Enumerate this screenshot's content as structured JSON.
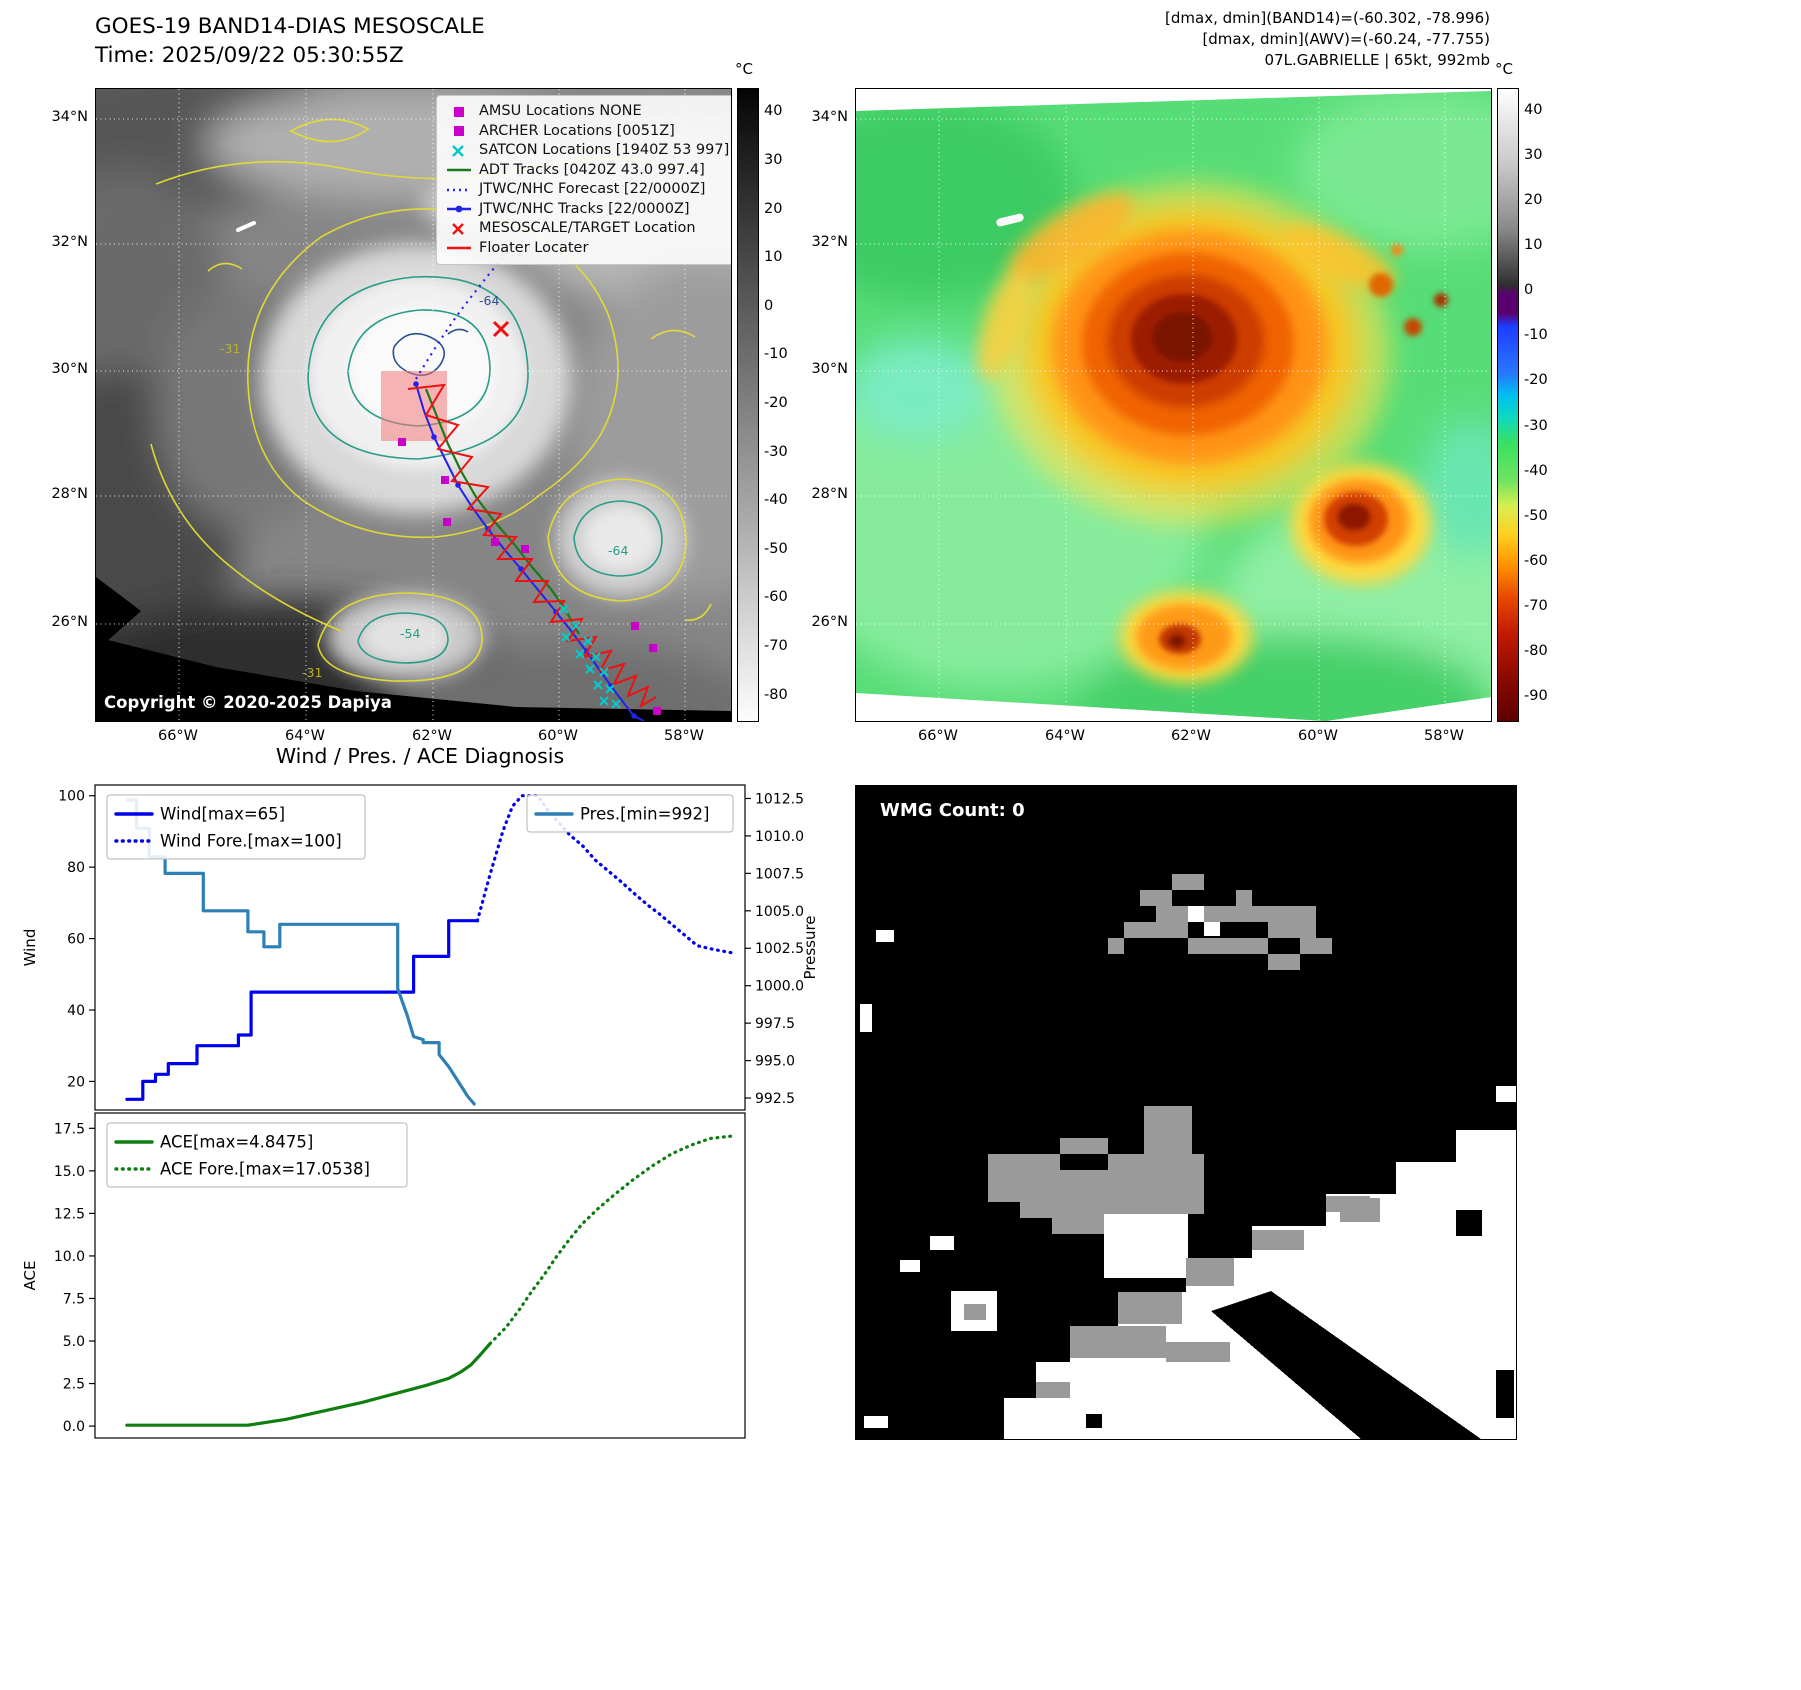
{
  "band14_panel": {
    "title_line1": "GOES-19 BAND14-DIAS MESOSCALE",
    "title_line2": "Time: 2025/09/22 05:30:55Z",
    "copyright": "Copyright © 2020-2025 Dapiya",
    "colorbar_unit": "°C",
    "colorbar_ticks": [
      "40",
      "30",
      "20",
      "10",
      "0",
      "-10",
      "-20",
      "-30",
      "-40",
      "-50",
      "-60",
      "-70",
      "-80"
    ],
    "colorbar_range": [
      45,
      -85
    ],
    "x_ticks": [
      "66°W",
      "64°W",
      "62°W",
      "60°W",
      "58°W"
    ],
    "y_ticks": [
      "34°N",
      "32°N",
      "30°N",
      "28°N",
      "26°N"
    ],
    "contour_labels": [
      "-64",
      "-64",
      "-54",
      "-31",
      "-31"
    ],
    "legend": [
      {
        "label": "AMSU Locations NONE",
        "marker": "square",
        "color": "#cc00cc"
      },
      {
        "label": "ARCHER Locations [0051Z]",
        "marker": "square",
        "color": "#cc00cc"
      },
      {
        "label": "SATCON Locations [1940Z 53 997]",
        "marker": "x",
        "color": "#00c8c8"
      },
      {
        "label": "ADT Tracks [0420Z 43.0 997.4]",
        "marker": "line",
        "color": "#1a7a1a"
      },
      {
        "label": "JTWC/NHC Forecast [22/0000Z]",
        "marker": "dotted",
        "color": "#2222ee"
      },
      {
        "label": "JTWC/NHC Tracks [22/0000Z]",
        "marker": "line-dot",
        "color": "#2222ee"
      },
      {
        "label": "MESOSCALE/TARGET Location",
        "marker": "x",
        "color": "#ee1111"
      },
      {
        "label": "Floater Locater",
        "marker": "line",
        "color": "#ee1111"
      }
    ]
  },
  "awv_panel": {
    "header_line1": "[dmax, dmin](BAND14)=(-60.302, -78.996)",
    "header_line2": "[dmax, dmin](AWV)=(-60.24, -77.755)",
    "header_line3": "07L.GABRIELLE | 65kt, 992mb",
    "colorbar_unit": "°C",
    "colorbar_ticks": [
      "40",
      "30",
      "20",
      "10",
      "0",
      "-10",
      "-20",
      "-30",
      "-40",
      "-50",
      "-60",
      "-70",
      "-80",
      "-90"
    ],
    "colorbar_range": [
      45,
      -95
    ],
    "x_ticks": [
      "66°W",
      "64°W",
      "62°W",
      "60°W",
      "58°W"
    ],
    "y_ticks": [
      "34°N",
      "32°N",
      "30°N",
      "28°N",
      "26°N"
    ]
  },
  "diagnosis": {
    "title": "Wind / Pres. / ACE Diagnosis"
  },
  "wmg_panel": {
    "label": "WMG Count: 0"
  },
  "chart_data": [
    {
      "type": "line",
      "title": "Wind / Pres. / ACE Diagnosis",
      "ylabel": "Wind",
      "y2label": "Pressure",
      "ylim": [
        12,
        103
      ],
      "y2lim": [
        991.7,
        1013.4
      ],
      "yticks": [
        "20",
        "40",
        "60",
        "80",
        "100"
      ],
      "y2ticks": [
        "992.5",
        "995.0",
        "997.5",
        "1000.0",
        "1002.5",
        "1005.0",
        "1007.5",
        "1010.0",
        "1012.5"
      ],
      "grid": false,
      "series": [
        {
          "name": "Wind[max=65]",
          "axis": "y",
          "style": "solid",
          "color": "#0000ee",
          "x": [
            0.05,
            0.075,
            0.075,
            0.095,
            0.095,
            0.115,
            0.115,
            0.16,
            0.16,
            0.225,
            0.225,
            0.245,
            0.245,
            0.5,
            0.5,
            0.555,
            0.555,
            0.6
          ],
          "values": [
            15,
            15,
            20,
            20,
            22,
            22,
            25,
            25,
            30,
            30,
            33,
            33,
            45,
            45,
            55,
            55,
            65,
            65
          ]
        },
        {
          "name": "Wind Fore.[max=100]",
          "axis": "y",
          "style": "dotted",
          "color": "#0000ee",
          "x": [
            0.6,
            0.62,
            0.64,
            0.655,
            0.67,
            0.695,
            0.71,
            0.73,
            0.745,
            0.765,
            0.785,
            0.805,
            0.825,
            0.85,
            0.87,
            0.885,
            0.905,
            0.925,
            0.945,
            0.97,
            1.0
          ],
          "values": [
            65,
            78,
            90,
            97,
            100,
            100,
            96,
            92,
            89,
            86,
            82,
            79,
            76,
            72,
            69,
            67,
            64,
            61,
            58,
            57,
            56
          ]
        },
        {
          "name": "Pres.[min=992]",
          "axis": "y2",
          "style": "solid",
          "color": "#2e7fb5",
          "x": [
            0.05,
            0.065,
            0.065,
            0.085,
            0.085,
            0.11,
            0.11,
            0.17,
            0.17,
            0.24,
            0.24,
            0.265,
            0.265,
            0.29,
            0.29,
            0.475,
            0.475,
            0.49,
            0.5,
            0.515,
            0.515,
            0.54,
            0.54,
            0.555,
            0.57,
            0.585,
            0.595
          ],
          "values": [
            1012.4,
            1012.4,
            1010.5,
            1010.5,
            1008.6,
            1008.6,
            1007.5,
            1007.5,
            1005.0,
            1005.0,
            1003.6,
            1003.6,
            1002.6,
            1002.6,
            1004.1,
            1004.1,
            999.8,
            998.0,
            996.6,
            996.4,
            996.2,
            996.2,
            995.4,
            994.6,
            993.6,
            992.6,
            992.1
          ]
        }
      ]
    },
    {
      "type": "line",
      "ylabel": "ACE",
      "ylim": [
        -0.7,
        18.4
      ],
      "yticks": [
        "0.0",
        "2.5",
        "5.0",
        "7.5",
        "10.0",
        "12.5",
        "15.0",
        "17.5"
      ],
      "grid": false,
      "series": [
        {
          "name": "ACE[max=4.8475]",
          "axis": "y",
          "style": "solid",
          "color": "#0f7d0f",
          "x": [
            0.05,
            0.24,
            0.3,
            0.36,
            0.42,
            0.47,
            0.52,
            0.555,
            0.575,
            0.59,
            0.605,
            0.62
          ],
          "values": [
            0.05,
            0.05,
            0.4,
            0.9,
            1.4,
            1.9,
            2.4,
            2.8,
            3.2,
            3.6,
            4.2,
            4.85
          ]
        },
        {
          "name": "ACE Fore.[max=17.0538]",
          "axis": "y",
          "style": "dotted",
          "color": "#0f7d0f",
          "x": [
            0.62,
            0.645,
            0.665,
            0.685,
            0.705,
            0.725,
            0.745,
            0.765,
            0.79,
            0.815,
            0.845,
            0.875,
            0.905,
            0.935,
            0.965,
            1.0
          ],
          "values": [
            4.85,
            5.8,
            6.8,
            7.9,
            8.9,
            10.0,
            11.0,
            11.9,
            12.8,
            13.6,
            14.5,
            15.3,
            16.0,
            16.5,
            16.9,
            17.05
          ]
        }
      ]
    }
  ]
}
